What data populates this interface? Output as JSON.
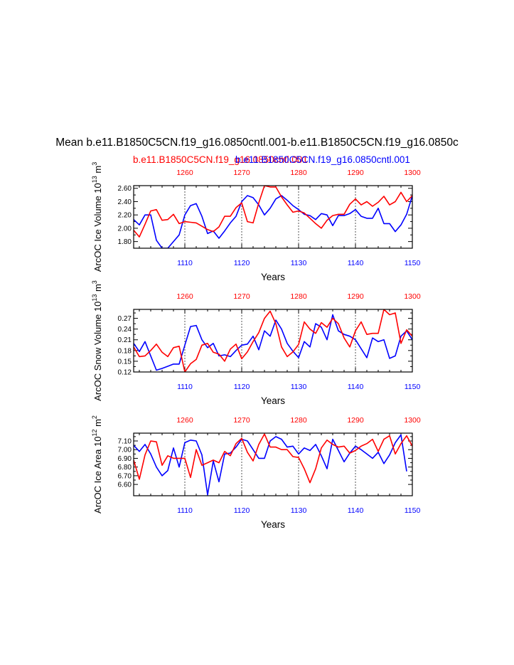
{
  "title": "Mean b.e11.B1850C5CN.f19_g16.0850cntl.001-b.e11.B1850C5CN.f19_g16.0850c",
  "case_red": "b.e11.B1850C5CN.f19_g16.0850cntl.001",
  "case_blue": "b.e11.B1850C5CN.f19_g16.0850cntl.001",
  "colors": {
    "red": "#ff0000",
    "blue": "#0000ff",
    "axis": "#000000",
    "grid": "#555555"
  },
  "chart_data": [
    {
      "type": "line",
      "name": "ice-volume",
      "ylabel_main": "ArcOC Ice Volume 10",
      "ylabel_exp": "13",
      "ylabel_unit": " m",
      "ylabel_unit_exp": "3",
      "xlabel": "Years",
      "xlim_bottom": [
        1101,
        1150
      ],
      "xlim_top": [
        1251,
        1300
      ],
      "xticks_bottom": [
        "1110",
        "1120",
        "1130",
        "1140",
        "1150"
      ],
      "xticks_top": [
        "1260",
        "1270",
        "1280",
        "1290",
        "1300"
      ],
      "ylim": [
        1.7,
        2.64
      ],
      "yticks": [
        "1.80",
        "2.00",
        "2.20",
        "2.40",
        "2.60"
      ],
      "series": [
        {
          "name": "blue",
          "color": "#0000ff",
          "values": [
            2.13,
            2.05,
            2.2,
            2.2,
            1.82,
            1.7,
            1.7,
            1.8,
            1.9,
            2.2,
            2.34,
            2.37,
            2.18,
            1.92,
            1.96,
            1.85,
            1.96,
            2.08,
            2.18,
            2.4,
            2.49,
            2.46,
            2.35,
            2.2,
            2.3,
            2.44,
            2.49,
            2.42,
            2.34,
            2.28,
            2.21,
            2.19,
            2.13,
            2.22,
            2.2,
            2.04,
            2.19,
            2.19,
            2.22,
            2.28,
            2.18,
            2.15,
            2.15,
            2.3,
            2.07,
            2.07,
            1.95,
            2.05,
            2.21,
            2.49,
            2.22
          ]
        },
        {
          "name": "red",
          "color": "#ff0000",
          "values": [
            1.97,
            1.87,
            2.06,
            2.26,
            2.28,
            2.12,
            2.13,
            2.21,
            2.07,
            2.1,
            2.09,
            2.08,
            2.03,
            1.98,
            1.95,
            2.02,
            2.18,
            2.18,
            2.31,
            2.38,
            2.1,
            2.08,
            2.38,
            2.64,
            2.62,
            2.62,
            2.47,
            2.35,
            2.24,
            2.26,
            2.23,
            2.15,
            2.07,
            2.0,
            2.12,
            2.19,
            2.21,
            2.21,
            2.36,
            2.44,
            2.35,
            2.4,
            2.33,
            2.39,
            2.48,
            2.35,
            2.4,
            2.54,
            2.4,
            2.49,
            2.48,
            2.45
          ]
        }
      ]
    },
    {
      "type": "line",
      "name": "snow-volume",
      "ylabel_main": "ArcOC Snow Volume 10",
      "ylabel_exp": "13",
      "ylabel_unit": " m",
      "ylabel_unit_exp": "3",
      "xlabel": "Years",
      "xlim_bottom": [
        1101,
        1150
      ],
      "xlim_top": [
        1251,
        1300
      ],
      "xticks_bottom": [
        "1110",
        "1120",
        "1130",
        "1140",
        "1150"
      ],
      "xticks_top": [
        "1260",
        "1270",
        "1280",
        "1290",
        "1300"
      ],
      "ylim": [
        0.12,
        0.295
      ],
      "yticks": [
        "0.12",
        "0.15",
        "0.18",
        "0.21",
        "0.24",
        "0.27"
      ],
      "series": [
        {
          "name": "blue",
          "color": "#0000ff",
          "values": [
            0.2,
            0.177,
            0.205,
            0.165,
            0.125,
            0.13,
            0.136,
            0.142,
            0.142,
            0.195,
            0.247,
            0.25,
            0.21,
            0.188,
            0.2,
            0.165,
            0.168,
            0.163,
            0.18,
            0.195,
            0.198,
            0.22,
            0.182,
            0.235,
            0.22,
            0.265,
            0.24,
            0.2,
            0.178,
            0.16,
            0.205,
            0.19,
            0.255,
            0.245,
            0.21,
            0.28,
            0.235,
            0.225,
            0.22,
            0.21,
            0.185,
            0.16,
            0.215,
            0.205,
            0.21,
            0.158,
            0.165,
            0.22,
            0.235,
            0.21,
            0.185
          ]
        },
        {
          "name": "red",
          "color": "#ff0000",
          "values": [
            0.19,
            0.163,
            0.165,
            0.18,
            0.198,
            0.175,
            0.163,
            0.188,
            0.192,
            0.12,
            0.143,
            0.155,
            0.195,
            0.2,
            0.175,
            0.17,
            0.15,
            0.184,
            0.198,
            0.157,
            0.176,
            0.205,
            0.23,
            0.27,
            0.29,
            0.255,
            0.19,
            0.163,
            0.176,
            0.197,
            0.26,
            0.24,
            0.228,
            0.258,
            0.245,
            0.27,
            0.255,
            0.215,
            0.19,
            0.235,
            0.26,
            0.225,
            0.228,
            0.228,
            0.295,
            0.28,
            0.285,
            0.2,
            0.238,
            0.22,
            0.155
          ]
        }
      ]
    },
    {
      "type": "line",
      "name": "ice-area",
      "ylabel_main": "ArcOC Ice Area 10",
      "ylabel_exp": "12",
      "ylabel_unit": " m",
      "ylabel_unit_exp": "2",
      "xlabel": "Years",
      "xlim_bottom": [
        1101,
        1150
      ],
      "xlim_top": [
        1251,
        1300
      ],
      "xticks_bottom": [
        "1110",
        "1120",
        "1130",
        "1140",
        "1150"
      ],
      "xticks_top": [
        "1260",
        "1270",
        "1280",
        "1290",
        "1300"
      ],
      "ylim": [
        6.47,
        7.19
      ],
      "yticks": [
        "6.60",
        "6.70",
        "6.80",
        "6.90",
        "7.00",
        "7.10"
      ],
      "series": [
        {
          "name": "blue",
          "color": "#0000ff",
          "values": [
            7.05,
            6.98,
            7.06,
            6.95,
            6.8,
            6.7,
            6.76,
            7.02,
            6.8,
            7.08,
            7.11,
            7.1,
            6.94,
            6.48,
            6.87,
            6.63,
            6.95,
            6.96,
            7.03,
            7.12,
            7.1,
            7.0,
            6.9,
            6.9,
            7.1,
            7.15,
            7.12,
            7.03,
            7.04,
            6.95,
            7.02,
            6.99,
            7.06,
            6.93,
            6.78,
            7.12,
            6.99,
            6.86,
            6.96,
            7.04,
            7.0,
            6.95,
            6.9,
            6.97,
            6.84,
            6.94,
            7.08,
            7.17,
            6.75
          ]
        },
        {
          "name": "red",
          "color": "#ff0000",
          "values": [
            6.88,
            6.66,
            6.94,
            7.1,
            7.09,
            6.82,
            6.93,
            6.9,
            6.9,
            6.9,
            6.68,
            7.0,
            6.82,
            6.85,
            6.88,
            6.85,
            6.98,
            6.93,
            7.07,
            7.13,
            6.97,
            6.87,
            7.06,
            7.18,
            7.03,
            7.03,
            7.0,
            7.0,
            6.92,
            6.91,
            6.78,
            6.62,
            6.78,
            7.02,
            7.11,
            7.06,
            7.03,
            7.04,
            6.96,
            6.99,
            7.04,
            7.07,
            7.12,
            6.98,
            7.12,
            7.16,
            6.95,
            7.07,
            7.16,
            7.04
          ]
        }
      ]
    }
  ]
}
